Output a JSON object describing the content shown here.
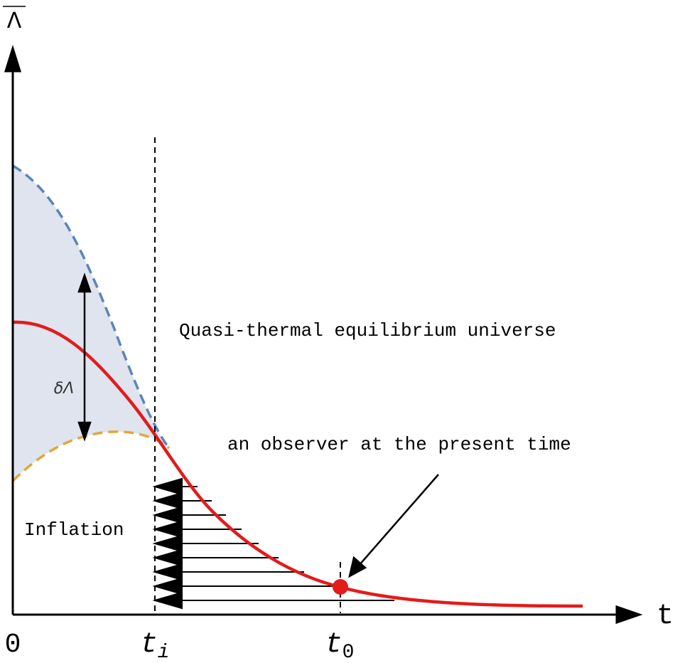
{
  "axes": {
    "y_label": "Λ",
    "x_label": "t",
    "x_ticks": {
      "zero": "0",
      "ti_base": "t",
      "ti_sub": "i",
      "t0_base": "t",
      "t0_sub": "0"
    }
  },
  "labels": {
    "region_right": "Quasi-thermal equilibrium universe",
    "region_left": "Inflation",
    "observer": "an observer at the present time",
    "delta": "δΛ"
  },
  "colors": {
    "main_curve": "#e31b1b",
    "upper_dashed": "#5b84b8",
    "lower_dashed": "#e0a83a",
    "band_fill": "#dfe4ef",
    "observer_dot": "#e31b1b",
    "ink": "#000000"
  }
}
